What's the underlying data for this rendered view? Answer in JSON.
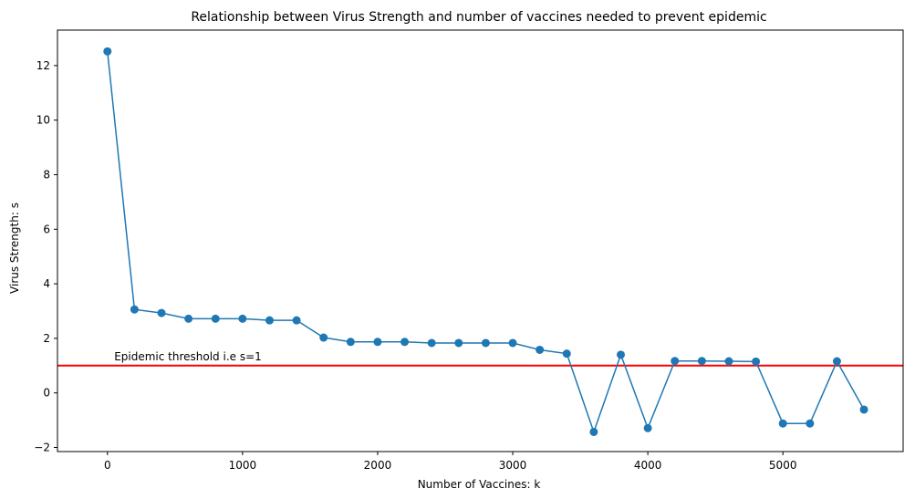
{
  "chart_data": {
    "type": "line",
    "title": "Relationship between Virus Strength and number of vaccines needed to prevent epidemic",
    "xlabel": "Number of Vaccines: k",
    "ylabel": "Virus Strength: s",
    "xlim": [
      -370,
      5890
    ],
    "ylim": [
      -2.15,
      13.3
    ],
    "xticks": [
      0,
      1000,
      2000,
      3000,
      4000,
      5000
    ],
    "yticks": [
      -2,
      0,
      2,
      4,
      6,
      8,
      10,
      12
    ],
    "grid": false,
    "series": [
      {
        "color": "#1f77b4",
        "marker": "circle",
        "x": [
          0,
          200,
          400,
          600,
          800,
          1000,
          1200,
          1400,
          1600,
          1800,
          2000,
          2200,
          2400,
          2600,
          2800,
          3000,
          3200,
          3400,
          3600,
          3800,
          4000,
          4200,
          4400,
          4600,
          4800,
          5000,
          5200,
          5400,
          5600
        ],
        "y": [
          12.52,
          3.06,
          2.93,
          2.72,
          2.72,
          2.72,
          2.66,
          2.66,
          2.03,
          1.87,
          1.87,
          1.87,
          1.83,
          1.83,
          1.83,
          1.83,
          1.58,
          1.44,
          -1.43,
          1.4,
          -1.29,
          1.17,
          1.17,
          1.16,
          1.15,
          -1.12,
          -1.12,
          1.16,
          -0.61
        ]
      }
    ],
    "threshold": {
      "y": 1,
      "color": "#ff0000",
      "label": "Epidemic threshold i.e s=1",
      "label_x": 50
    }
  }
}
